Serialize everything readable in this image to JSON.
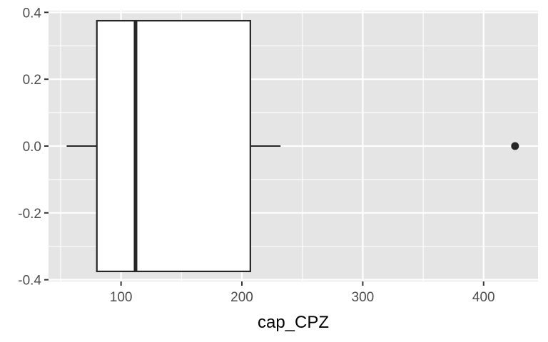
{
  "chart_data": {
    "type": "boxplot",
    "xlabel": "cap_CPZ",
    "ylabel": "",
    "xlim": [
      40,
      445
    ],
    "ylim": [
      -0.405,
      0.405
    ],
    "x_ticks": [
      100,
      200,
      300,
      400
    ],
    "x_tick_labels": [
      "100",
      "200",
      "300",
      "400"
    ],
    "x_minor_ticks": [
      50,
      150,
      250,
      350
    ],
    "y_ticks": [
      0.4,
      0.2,
      0.0,
      -0.2,
      -0.4
    ],
    "y_tick_labels": [
      "0.4",
      "0.2",
      "0.0",
      "-0.2",
      "-0.4"
    ],
    "y_minor_ticks": [
      0.3,
      0.1,
      -0.1,
      -0.3
    ],
    "box": {
      "whisker_low": 55,
      "q1": 80,
      "median": 112,
      "q3": 207,
      "whisker_high": 232,
      "y_min": -0.375,
      "y_max": 0.375,
      "y_center": 0
    },
    "outliers": [
      426
    ],
    "grid": true,
    "colors": {
      "panel": "#e5e5e5",
      "grid": "#ffffff",
      "box_fill": "#ffffff",
      "box_stroke": "#262626",
      "outlier": "#262626",
      "tick": "#333333"
    }
  }
}
